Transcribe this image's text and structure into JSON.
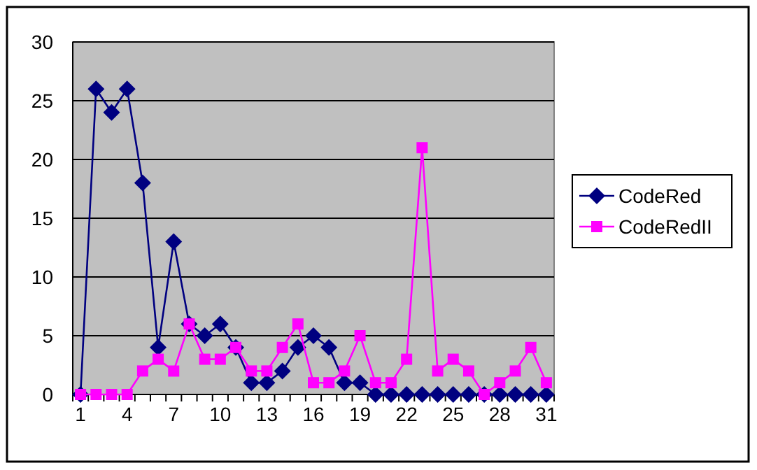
{
  "chart_data": {
    "type": "line",
    "categories": [
      "1",
      null,
      null,
      "4",
      null,
      null,
      "7",
      null,
      null,
      "10",
      null,
      null,
      "13",
      null,
      null,
      "16",
      null,
      null,
      "19",
      null,
      null,
      "22",
      null,
      null,
      "25",
      null,
      null,
      "28",
      null,
      null,
      "31"
    ],
    "series": [
      {
        "name": "CodeRed",
        "color": "#000080",
        "marker": "diamond",
        "values": [
          0,
          26,
          24,
          26,
          18,
          4,
          13,
          6,
          5,
          6,
          4,
          1,
          1,
          2,
          4,
          5,
          4,
          1,
          1,
          0,
          0,
          0,
          0,
          0,
          0,
          0,
          0,
          0,
          0,
          0,
          0
        ]
      },
      {
        "name": "CodeRedII",
        "color": "#ff00ff",
        "marker": "square",
        "values": [
          0,
          0,
          0,
          0,
          2,
          3,
          2,
          6,
          3,
          3,
          4,
          2,
          2,
          4,
          6,
          1,
          1,
          2,
          5,
          1,
          1,
          3,
          21,
          2,
          3,
          2,
          0,
          1,
          2,
          4,
          1
        ]
      }
    ],
    "ylim": [
      0,
      30
    ],
    "yticks": [
      0,
      5,
      10,
      15,
      20,
      25,
      30
    ],
    "grid": "y",
    "legend": "right"
  }
}
